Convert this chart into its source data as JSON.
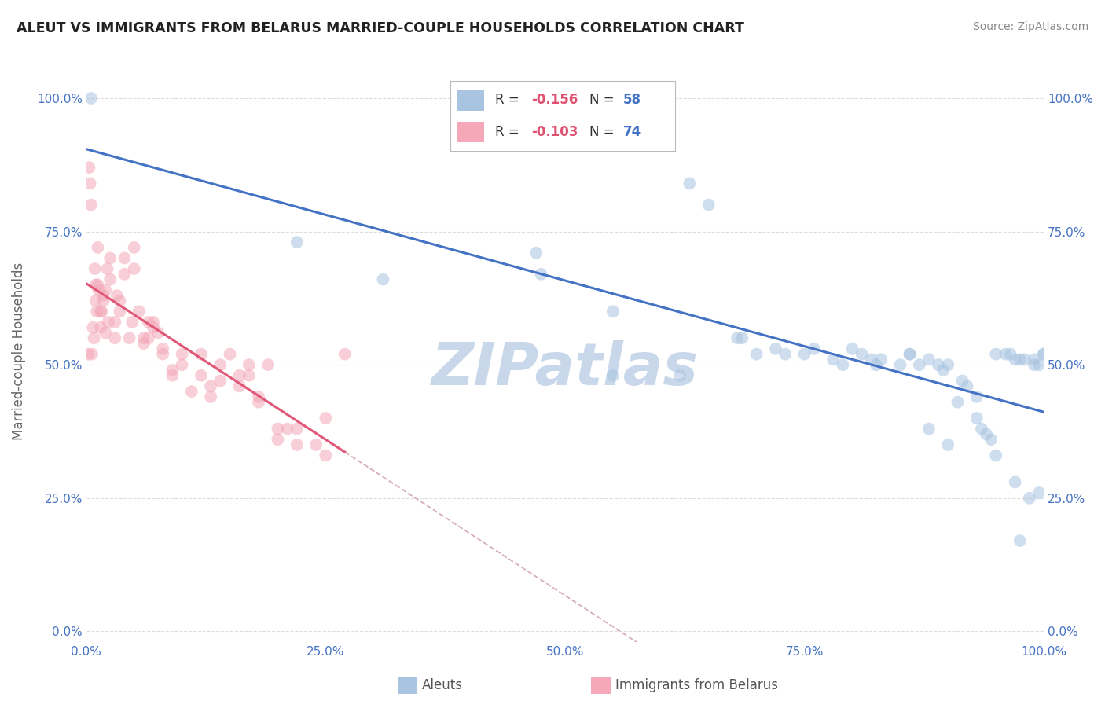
{
  "title": "ALEUT VS IMMIGRANTS FROM BELARUS MARRIED-COUPLE HOUSEHOLDS CORRELATION CHART",
  "source": "Source: ZipAtlas.com",
  "ylabel": "Married-couple Households",
  "legend_labels": [
    "Aleuts",
    "Immigrants from Belarus"
  ],
  "aleut_R": -0.156,
  "aleut_N": 58,
  "belarus_R": -0.103,
  "belarus_N": 74,
  "aleut_color": "#a8c4e0",
  "belarus_color": "#f4a8b8",
  "aleut_line_color": "#4472c4",
  "belarus_line_color": "#e05878",
  "dashed_line_color": "#d0a0a8",
  "title_color": "#222222",
  "source_color": "#888888",
  "axis_label_color": "#666666",
  "tick_color": "#4472c4",
  "background_color": "#ffffff",
  "grid_color": "#dddddd",
  "legend_r_color": "#e05070",
  "legend_n_color": "#4472c4",
  "aleut_x": [
    0.5,
    22.0,
    31.0,
    47.0,
    47.5,
    55.0,
    63.0,
    65.0,
    68.0,
    68.5,
    70.0,
    72.0,
    73.0,
    75.0,
    76.0,
    78.0,
    79.0,
    81.0,
    82.0,
    82.5,
    83.0,
    85.0,
    86.0,
    87.0,
    88.0,
    89.0,
    89.5,
    90.0,
    91.0,
    91.5,
    92.0,
    93.0,
    93.5,
    94.0,
    94.5,
    95.0,
    96.0,
    96.5,
    97.0,
    97.5,
    98.0,
    98.5,
    99.0,
    99.0,
    99.5,
    100.0,
    55.0,
    62.0,
    80.0,
    86.0,
    88.0,
    90.0,
    93.0,
    95.0,
    97.0,
    97.5,
    99.5,
    100.0
  ],
  "aleut_y": [
    100.0,
    73.0,
    66.0,
    71.0,
    67.0,
    60.0,
    84.0,
    80.0,
    55.0,
    55.0,
    52.0,
    53.0,
    52.0,
    52.0,
    53.0,
    51.0,
    50.0,
    52.0,
    51.0,
    50.0,
    51.0,
    50.0,
    52.0,
    50.0,
    51.0,
    50.0,
    49.0,
    50.0,
    43.0,
    47.0,
    46.0,
    44.0,
    38.0,
    37.0,
    36.0,
    52.0,
    52.0,
    52.0,
    51.0,
    51.0,
    51.0,
    25.0,
    51.0,
    50.0,
    50.0,
    52.0,
    48.0,
    48.0,
    53.0,
    52.0,
    38.0,
    35.0,
    40.0,
    33.0,
    28.0,
    17.0,
    26.0,
    52.0
  ],
  "belarus_x": [
    0.2,
    0.3,
    0.4,
    0.5,
    0.6,
    0.7,
    0.8,
    0.9,
    1.0,
    1.1,
    1.2,
    1.3,
    1.5,
    1.6,
    1.8,
    2.0,
    2.2,
    2.5,
    3.0,
    3.5,
    4.0,
    4.5,
    5.0,
    5.5,
    6.0,
    6.5,
    7.0,
    7.5,
    8.0,
    9.0,
    10.0,
    11.0,
    12.0,
    13.0,
    14.0,
    15.0,
    16.0,
    17.0,
    18.0,
    19.0,
    20.0,
    22.0,
    25.0,
    27.0,
    1.0,
    1.5,
    2.0,
    2.5,
    3.0,
    3.5,
    4.0,
    5.0,
    6.0,
    7.0,
    8.0,
    10.0,
    12.0,
    14.0,
    16.0,
    18.0,
    20.0,
    22.0,
    25.0,
    1.2,
    1.8,
    2.3,
    3.2,
    4.8,
    6.5,
    9.0,
    13.0,
    17.0,
    21.0,
    24.0
  ],
  "belarus_y": [
    52.0,
    87.0,
    84.0,
    80.0,
    52.0,
    57.0,
    55.0,
    68.0,
    62.0,
    60.0,
    65.0,
    64.0,
    57.0,
    60.0,
    62.0,
    56.0,
    68.0,
    66.0,
    55.0,
    60.0,
    70.0,
    55.0,
    72.0,
    60.0,
    55.0,
    58.0,
    57.0,
    56.0,
    52.0,
    48.0,
    52.0,
    45.0,
    52.0,
    46.0,
    50.0,
    52.0,
    48.0,
    50.0,
    44.0,
    50.0,
    38.0,
    38.0,
    40.0,
    52.0,
    65.0,
    60.0,
    64.0,
    70.0,
    58.0,
    62.0,
    67.0,
    68.0,
    54.0,
    58.0,
    53.0,
    50.0,
    48.0,
    47.0,
    46.0,
    43.0,
    36.0,
    35.0,
    33.0,
    72.0,
    63.0,
    58.0,
    63.0,
    58.0,
    55.0,
    49.0,
    44.0,
    48.0,
    38.0,
    35.0
  ],
  "xlim": [
    0.0,
    100.0
  ],
  "ylim": [
    -2.0,
    107.0
  ],
  "yticks": [
    0.0,
    25.0,
    50.0,
    75.0,
    100.0
  ],
  "xticks": [
    0.0,
    25.0,
    50.0,
    75.0,
    100.0
  ],
  "xtick_labels": [
    "0.0%",
    "25.0%",
    "50.0%",
    "75.0%",
    "100.0%"
  ],
  "ytick_labels": [
    "0.0%",
    "25.0%",
    "50.0%",
    "75.0%",
    "100.0%"
  ],
  "marker_size": 130,
  "marker_alpha": 0.55,
  "watermark": "ZIPatlas",
  "watermark_color": "#c8d8ea",
  "figsize": [
    14.06,
    8.92
  ],
  "dpi": 100
}
